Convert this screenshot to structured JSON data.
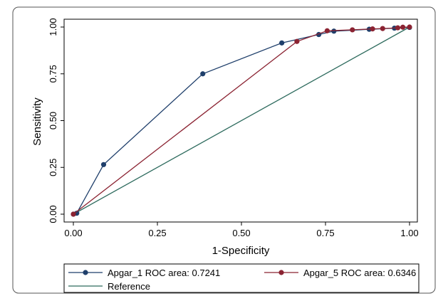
{
  "chart_data": {
    "type": "line",
    "title": "",
    "xlabel": "1-Specificity",
    "ylabel": "Sensitivity",
    "xlim": [
      0,
      1
    ],
    "ylim": [
      0,
      1
    ],
    "xticks": [
      0,
      0.25,
      0.5,
      0.75,
      1
    ],
    "yticks": [
      0,
      0.25,
      0.5,
      0.75,
      1
    ],
    "xtick_labels": [
      "0.00",
      "0.25",
      "0.50",
      "0.75",
      "1.00"
    ],
    "ytick_labels": [
      "0.00",
      "0.25",
      "0.50",
      "0.75",
      "1.00"
    ],
    "grid": false,
    "legend_position": "bottom",
    "series": [
      {
        "name": "Apgar_1 ROC area: 0.7241",
        "color": "#1f3f6b",
        "marker": "circle",
        "points": [
          [
            0,
            0
          ],
          [
            0.01,
            0.005
          ],
          [
            0.09,
            0.265
          ],
          [
            0.385,
            0.75
          ],
          [
            0.62,
            0.915
          ],
          [
            0.73,
            0.96
          ],
          [
            0.775,
            0.978
          ],
          [
            0.88,
            0.988
          ],
          [
            0.955,
            0.994
          ],
          [
            1,
            0.998
          ]
        ]
      },
      {
        "name": "Apgar_5 ROC area: 0.6346",
        "color": "#8b2332",
        "marker": "circle",
        "points": [
          [
            0,
            0
          ],
          [
            0.665,
            0.923
          ],
          [
            0.755,
            0.98
          ],
          [
            0.83,
            0.985
          ],
          [
            0.89,
            0.99
          ],
          [
            0.92,
            0.992
          ],
          [
            0.965,
            0.996
          ],
          [
            0.98,
            0.999
          ],
          [
            1,
            1
          ]
        ]
      },
      {
        "name": "Reference",
        "color": "#2e6b5e",
        "marker": "none",
        "points": [
          [
            0,
            0
          ],
          [
            1,
            1
          ]
        ]
      }
    ]
  }
}
